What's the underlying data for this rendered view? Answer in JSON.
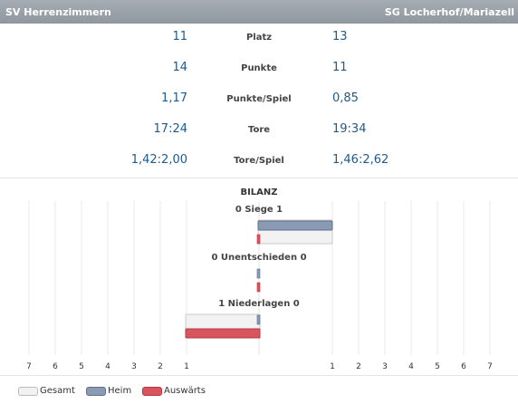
{
  "header": {
    "team_left": "SV Herrenzimmern",
    "team_right": "SG Locherhof/Mariazell"
  },
  "stats": [
    {
      "left": "11",
      "label": "Platz",
      "right": "13"
    },
    {
      "left": "14",
      "label": "Punkte",
      "right": "11"
    },
    {
      "left": "1,17",
      "label": "Punkte/Spiel",
      "right": "0,85"
    },
    {
      "left": "17:24",
      "label": "Tore",
      "right": "19:34"
    },
    {
      "left": "1,42:2,00",
      "label": "Tore/Spiel",
      "right": "1,46:2,62"
    }
  ],
  "bilanz_title": "BILANZ",
  "colors": {
    "gesamt": "#f2f2f2",
    "heim": "#8a9ab5",
    "auswaerts": "#d9545e",
    "header": "#9aa2a9",
    "value": "#1e5a8c"
  },
  "chart_data": {
    "type": "bar",
    "title": "BILANZ",
    "categories": [
      "0 Siege 1",
      "0 Unentschieden 0",
      "1 Niederlagen 0"
    ],
    "series": [
      {
        "name": "Gesamt",
        "left": [
          0,
          0,
          1
        ],
        "right": [
          1,
          0,
          0
        ]
      },
      {
        "name": "Heim",
        "left": [
          0,
          0,
          0
        ],
        "right": [
          1,
          0,
          0
        ]
      },
      {
        "name": "Auswärts",
        "left": [
          0,
          0,
          1
        ],
        "right": [
          0,
          0,
          0
        ]
      }
    ],
    "xlim": [
      -7,
      7
    ],
    "left_ticks": [
      "7",
      "6",
      "5",
      "4",
      "3",
      "2",
      "1"
    ],
    "right_ticks": [
      "1",
      "2",
      "3",
      "4",
      "5",
      "6",
      "7"
    ],
    "legend": [
      "Gesamt",
      "Heim",
      "Auswärts"
    ],
    "legend_position": "bottom-left",
    "grid": true
  }
}
